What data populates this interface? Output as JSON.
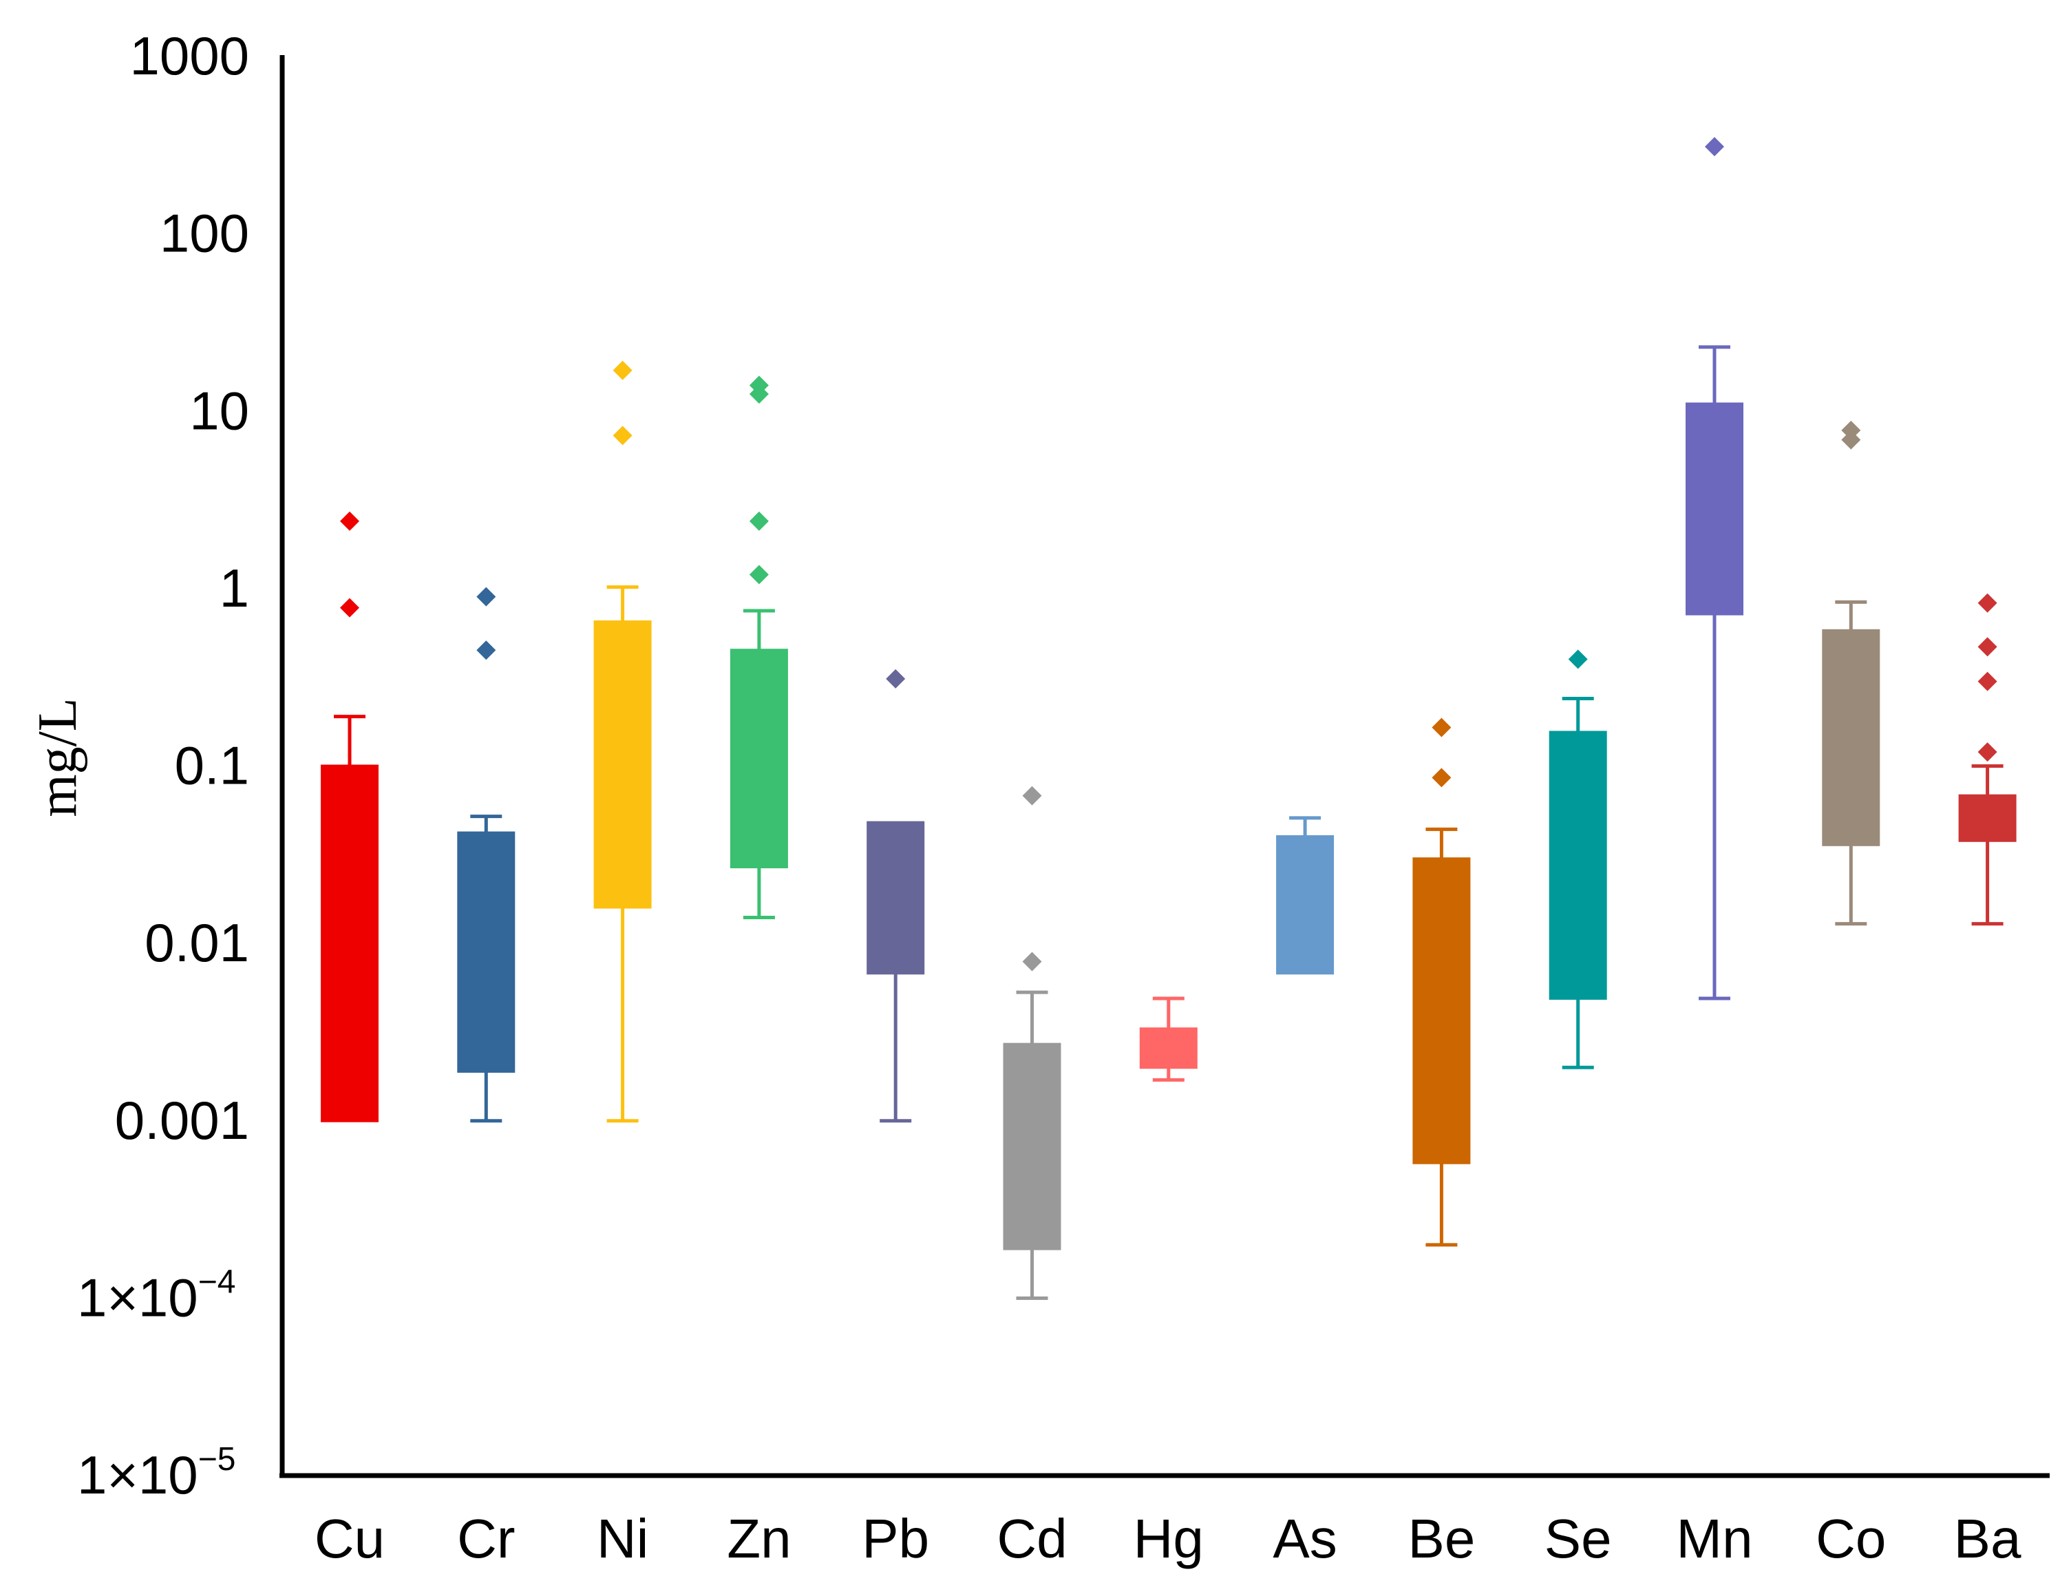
{
  "chart_data": {
    "type": "boxplot",
    "title": "",
    "xlabel": "",
    "ylabel": "mg/L",
    "yscale": "log",
    "ylim": [
      1e-05,
      1000
    ],
    "grid": false,
    "y_ticks": [
      {
        "value": 1000,
        "label": "1000"
      },
      {
        "value": 100,
        "label": "100"
      },
      {
        "value": 10,
        "label": "10"
      },
      {
        "value": 1,
        "label": "1"
      },
      {
        "value": 0.1,
        "label": "0.1"
      },
      {
        "value": 0.01,
        "label": "0.01"
      },
      {
        "value": 0.001,
        "label": "0.001"
      },
      {
        "value": 0.0001,
        "label": "1×10",
        "sup": "−4"
      },
      {
        "value": 1e-05,
        "label": "1×10",
        "sup": "−5"
      }
    ],
    "series": [
      {
        "name": "Cu",
        "color": "#ee0000",
        "q1": 0.001,
        "q3": 0.1,
        "whisker_low": 0.001,
        "whisker_high": 0.19,
        "outliers": [
          2.4,
          0.78
        ]
      },
      {
        "name": "Cr",
        "color": "#336699",
        "q1": 0.0019,
        "q3": 0.042,
        "whisker_low": 0.001,
        "whisker_high": 0.052,
        "outliers": [
          0.9,
          0.45
        ]
      },
      {
        "name": "Ni",
        "color": "#fcc010",
        "q1": 0.016,
        "q3": 0.65,
        "whisker_low": 0.001,
        "whisker_high": 1.02,
        "outliers": [
          17,
          7.3
        ]
      },
      {
        "name": "Zn",
        "color": "#3ac070",
        "q1": 0.027,
        "q3": 0.45,
        "whisker_low": 0.014,
        "whisker_high": 0.75,
        "outliers": [
          14,
          12.5,
          2.4,
          1.2
        ]
      },
      {
        "name": "Pb",
        "color": "#666699",
        "q1": 0.0068,
        "q3": 0.048,
        "whisker_low": 0.001,
        "whisker_high": 0.048,
        "outliers": [
          0.31
        ]
      },
      {
        "name": "Cd",
        "color": "#999999",
        "q1": 0.00019,
        "q3": 0.0027,
        "whisker_low": 0.0001,
        "whisker_high": 0.0053,
        "outliers": [
          0.068,
          0.0079
        ]
      },
      {
        "name": "Hg",
        "color": "#ff6666",
        "q1": 0.002,
        "q3": 0.0033,
        "whisker_low": 0.0017,
        "whisker_high": 0.0049,
        "outliers": []
      },
      {
        "name": "As",
        "color": "#6699cc",
        "q1": 0.0068,
        "q3": 0.04,
        "whisker_low": 0.0068,
        "whisker_high": 0.051,
        "outliers": []
      },
      {
        "name": "Be",
        "color": "#cc6600",
        "q1": 0.00058,
        "q3": 0.03,
        "whisker_low": 0.0002,
        "whisker_high": 0.044,
        "outliers": [
          0.165,
          0.086
        ]
      },
      {
        "name": "Se",
        "color": "#009999",
        "q1": 0.0049,
        "q3": 0.155,
        "whisker_low": 0.002,
        "whisker_high": 0.24,
        "outliers": [
          0.4
        ]
      },
      {
        "name": "Mn",
        "color": "#6b68bd",
        "q1": 0.72,
        "q3": 11,
        "whisker_low": 0.0049,
        "whisker_high": 23,
        "outliers": [
          310
        ]
      },
      {
        "name": "Co",
        "color": "#9a8a7a",
        "q1": 0.036,
        "q3": 0.58,
        "whisker_low": 0.0129,
        "whisker_high": 0.84,
        "outliers": [
          7.8,
          6.9
        ]
      },
      {
        "name": "Ba",
        "color": "#cc3333",
        "q1": 0.038,
        "q3": 0.068,
        "whisker_low": 0.0129,
        "whisker_high": 0.1,
        "outliers": [
          0.83,
          0.47,
          0.3,
          0.12
        ]
      }
    ]
  }
}
